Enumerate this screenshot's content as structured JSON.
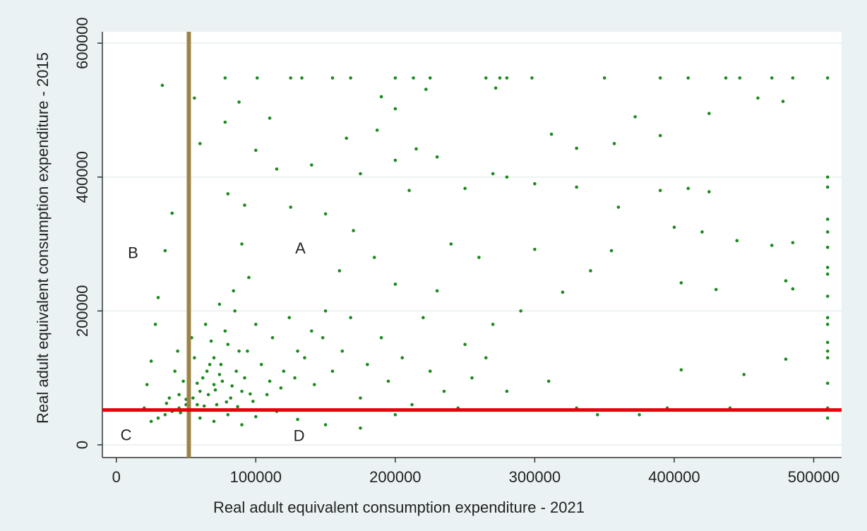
{
  "chart_data": {
    "type": "scatter",
    "xlabel": "Real adult equivalent consumption expenditure - 2021",
    "ylabel": "Real adult equivalent consumption expenditure - 2015",
    "color": "#1b8a1b",
    "xlim": [
      -10000,
      520000
    ],
    "ylim": [
      -19000,
      617000
    ],
    "xticks": [
      0,
      100000,
      200000,
      300000,
      400000,
      500000
    ],
    "yticks": [
      0,
      200000,
      400000,
      600000
    ],
    "grid": true,
    "vline": {
      "value": 52000,
      "color": "#9c8446"
    },
    "hline": {
      "value": 52000,
      "color": "#e8000b"
    },
    "annotations": [
      {
        "text": "A",
        "x": 132000,
        "y": 292000
      },
      {
        "text": "B",
        "x": 12000,
        "y": 285000
      },
      {
        "text": "C",
        "x": 7000,
        "y": 13000
      },
      {
        "text": "D",
        "x": 131000,
        "y": 12000
      }
    ],
    "x": [
      78000,
      101000,
      125000,
      133000,
      155000,
      168000,
      200000,
      213000,
      225000,
      265000,
      275000,
      280000,
      298000,
      350000,
      390000,
      410000,
      437000,
      447000,
      470000,
      485000,
      510000,
      33000,
      56000,
      60000,
      88000,
      78000,
      110000,
      100000,
      190000,
      200000,
      222000,
      272000,
      187000,
      165000,
      215000,
      230000,
      200000,
      460000,
      478000,
      425000,
      372000,
      390000,
      312000,
      357000,
      330000,
      140000,
      115000,
      175000,
      270000,
      280000,
      300000,
      390000,
      410000,
      425000,
      510000,
      510000,
      40000,
      80000,
      92000,
      125000,
      150000,
      210000,
      250000,
      330000,
      360000,
      400000,
      420000,
      470000,
      485000,
      510000,
      510000,
      510000,
      510000,
      510000,
      510000,
      510000,
      510000,
      510000,
      510000,
      510000,
      510000,
      510000,
      510000,
      480000,
      485000,
      405000,
      430000,
      445000,
      355000,
      340000,
      320000,
      300000,
      290000,
      260000,
      240000,
      230000,
      270000,
      250000,
      220000,
      200000,
      185000,
      170000,
      160000,
      150000,
      140000,
      130000,
      120000,
      110000,
      100000,
      95000,
      90000,
      85000,
      80000,
      75000,
      70000,
      65000,
      60000,
      55000,
      50000,
      45000,
      40000,
      35000,
      30000,
      25000,
      20000,
      22000,
      25000,
      28000,
      30000,
      35000,
      45000,
      48000,
      52000,
      58000,
      62000,
      66000,
      70000,
      72000,
      76000,
      82000,
      86000,
      90000,
      94000,
      98000,
      104000,
      108000,
      112000,
      118000,
      124000,
      128000,
      135000,
      142000,
      148000,
      155000,
      162000,
      168000,
      175000,
      180000,
      190000,
      195000,
      205000,
      212000,
      225000,
      235000,
      245000,
      255000,
      265000,
      280000,
      310000,
      330000,
      345000,
      375000,
      395000,
      450000,
      480000,
      405000,
      440000,
      60000,
      70000,
      80000,
      90000,
      100000,
      115000,
      130000,
      150000,
      175000,
      200000,
      38000,
      42000,
      44000,
      54000,
      64000,
      74000,
      84000,
      56000,
      68000,
      78000,
      88000,
      92000,
      36000,
      46000,
      50000,
      58000,
      63000,
      67000,
      71000,
      74000,
      79000,
      83000,
      87000,
      96000
    ],
    "y": [
      548000,
      548000,
      548000,
      548000,
      548000,
      548000,
      548000,
      548000,
      548000,
      548000,
      548000,
      548000,
      548000,
      548000,
      548000,
      548000,
      548000,
      548000,
      548000,
      548000,
      548000,
      537000,
      518000,
      450000,
      512000,
      482000,
      488000,
      440000,
      520000,
      502000,
      531000,
      533000,
      470000,
      458000,
      442000,
      430000,
      425000,
      518000,
      513000,
      495000,
      490000,
      462000,
      464000,
      450000,
      443000,
      418000,
      412000,
      405000,
      405000,
      400000,
      390000,
      380000,
      383000,
      378000,
      400000,
      385000,
      346000,
      375000,
      358000,
      355000,
      345000,
      380000,
      383000,
      385000,
      355000,
      325000,
      318000,
      298000,
      302000,
      337000,
      318000,
      295000,
      265000,
      255000,
      222000,
      190000,
      180000,
      153000,
      140000,
      130000,
      92000,
      55000,
      40000,
      245000,
      233000,
      242000,
      232000,
      305000,
      290000,
      260000,
      228000,
      292000,
      200000,
      280000,
      300000,
      230000,
      180000,
      150000,
      190000,
      240000,
      280000,
      320000,
      260000,
      200000,
      170000,
      140000,
      110000,
      95000,
      180000,
      250000,
      300000,
      200000,
      150000,
      120000,
      90000,
      110000,
      80000,
      70000,
      60000,
      55000,
      50000,
      45000,
      40000,
      35000,
      55000,
      90000,
      125000,
      180000,
      220000,
      290000,
      75000,
      95000,
      85000,
      60000,
      100000,
      75000,
      130000,
      60000,
      95000,
      70000,
      110000,
      80000,
      140000,
      65000,
      120000,
      75000,
      160000,
      85000,
      190000,
      100000,
      130000,
      90000,
      160000,
      110000,
      140000,
      190000,
      70000,
      120000,
      160000,
      95000,
      130000,
      60000,
      110000,
      80000,
      55000,
      100000,
      130000,
      80000,
      95000,
      55000,
      45000,
      45000,
      55000,
      105000,
      128000,
      112000,
      55000,
      40000,
      35000,
      45000,
      30000,
      42000,
      50000,
      38000,
      30000,
      25000,
      45000,
      70000,
      110000,
      140000,
      160000,
      180000,
      210000,
      230000,
      130000,
      155000,
      170000,
      140000,
      100000,
      62000,
      48000,
      68000,
      92000,
      58000,
      120000,
      82000,
      105000,
      64000,
      88000,
      57000,
      76000
    ]
  }
}
